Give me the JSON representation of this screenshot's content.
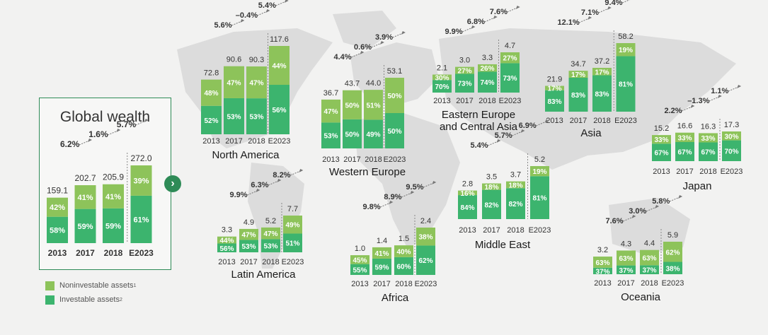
{
  "colors": {
    "noninvestable": "#8dc35a",
    "investable": "#3cb46e",
    "accent": "#2e8b57",
    "map": "#dcdcdc",
    "background": "#f2f2f1"
  },
  "legend": {
    "noninvestable_label": "Noninvestable assets",
    "noninvestable_note": "1",
    "investable_label": "Investable assets",
    "investable_note": "2"
  },
  "chart_data": [
    {
      "type": "bar",
      "stacked": true,
      "title": "Global wealth",
      "categories": [
        "2013",
        "2017",
        "2018",
        "E2023"
      ],
      "totals": [
        "159.1",
        "202.7",
        "205.9",
        "272.0"
      ],
      "series": [
        {
          "name": "Investable assets",
          "labels": [
            "58%",
            "59%",
            "59%",
            "61%"
          ]
        },
        {
          "name": "Noninvestable assets",
          "labels": [
            "42%",
            "41%",
            "41%",
            "39%"
          ]
        }
      ],
      "growth": [
        "6.2%",
        "1.6%",
        "5.7%"
      ]
    },
    {
      "type": "bar",
      "stacked": true,
      "title": "North America",
      "categories": [
        "2013",
        "2017",
        "2018",
        "E2023"
      ],
      "totals": [
        "72.8",
        "90.6",
        "90.3",
        "117.6"
      ],
      "series": [
        {
          "name": "Investable assets",
          "labels": [
            "52%",
            "53%",
            "53%",
            "56%"
          ]
        },
        {
          "name": "Noninvestable assets",
          "labels": [
            "48%",
            "47%",
            "47%",
            "44%"
          ]
        }
      ],
      "growth": [
        "5.6%",
        "–0.4%",
        "5.4%"
      ]
    },
    {
      "type": "bar",
      "stacked": true,
      "title": "Western Europe",
      "categories": [
        "2013",
        "2017",
        "2018",
        "E2023"
      ],
      "totals": [
        "36.7",
        "43.7",
        "44.0",
        "53.1"
      ],
      "series": [
        {
          "name": "Investable assets",
          "labels": [
            "53%",
            "50%",
            "49%",
            "50%"
          ]
        },
        {
          "name": "Noninvestable assets",
          "labels": [
            "47%",
            "50%",
            "51%",
            "50%"
          ]
        }
      ],
      "growth": [
        "4.4%",
        "0.6%",
        "3.9%"
      ]
    },
    {
      "type": "bar",
      "stacked": true,
      "title": "Eastern Europe and Central Asia",
      "title_lines": [
        "Eastern Europe",
        "and Central Asia"
      ],
      "categories": [
        "2013",
        "2017",
        "2018",
        "E2023"
      ],
      "totals": [
        "2.1",
        "3.0",
        "3.3",
        "4.7"
      ],
      "series": [
        {
          "name": "Investable assets",
          "labels": [
            "70%",
            "73%",
            "74%",
            "73%"
          ]
        },
        {
          "name": "Noninvestable assets",
          "labels": [
            "30%",
            "27%",
            "26%",
            "27%"
          ]
        }
      ],
      "growth": [
        "9.9%",
        "6.8%",
        "7.6%"
      ]
    },
    {
      "type": "bar",
      "stacked": true,
      "title": "Asia",
      "categories": [
        "2013",
        "2017",
        "2018",
        "E2023"
      ],
      "totals": [
        "21.9",
        "34.7",
        "37.2",
        "58.2"
      ],
      "series": [
        {
          "name": "Investable assets",
          "labels": [
            "83%",
            "83%",
            "83%",
            "81%"
          ]
        },
        {
          "name": "Noninvestable assets",
          "labels": [
            "17%",
            "17%",
            "17%",
            "19%"
          ]
        }
      ],
      "growth": [
        "12.1%",
        "7.1%",
        "9.4%"
      ]
    },
    {
      "type": "bar",
      "stacked": true,
      "title": "Japan",
      "categories": [
        "2013",
        "2017",
        "2018",
        "E2023"
      ],
      "totals": [
        "15.2",
        "16.6",
        "16.3",
        "17.3"
      ],
      "series": [
        {
          "name": "Investable assets",
          "labels": [
            "67%",
            "67%",
            "67%",
            "70%"
          ]
        },
        {
          "name": "Noninvestable assets",
          "labels": [
            "33%",
            "33%",
            "33%",
            "30%"
          ]
        }
      ],
      "growth": [
        "2.2%",
        "–1.3%",
        "1.1%"
      ]
    },
    {
      "type": "bar",
      "stacked": true,
      "title": "Latin America",
      "categories": [
        "2013",
        "2017",
        "2018",
        "E2023"
      ],
      "totals": [
        "3.3",
        "4.9",
        "5.2",
        "7.7"
      ],
      "series": [
        {
          "name": "Investable assets",
          "labels": [
            "56%",
            "53%",
            "53%",
            "51%"
          ]
        },
        {
          "name": "Noninvestable assets",
          "labels": [
            "44%",
            "47%",
            "47%",
            "49%"
          ]
        }
      ],
      "growth": [
        "9.9%",
        "6.3%",
        "8.2%"
      ]
    },
    {
      "type": "bar",
      "stacked": true,
      "title": "Africa",
      "categories": [
        "2013",
        "2017",
        "2018",
        "E2023"
      ],
      "totals": [
        "1.0",
        "1.4",
        "1.5",
        "2.4"
      ],
      "series": [
        {
          "name": "Investable assets",
          "labels": [
            "55%",
            "59%",
            "60%",
            "62%"
          ]
        },
        {
          "name": "Noninvestable assets",
          "labels": [
            "45%",
            "41%",
            "40%",
            "38%"
          ]
        }
      ],
      "growth": [
        "9.8%",
        "8.9%",
        "9.5%"
      ]
    },
    {
      "type": "bar",
      "stacked": true,
      "title": "Middle East",
      "categories": [
        "2013",
        "2017",
        "2018",
        "E2023"
      ],
      "totals": [
        "2.8",
        "3.5",
        "3.7",
        "5.2"
      ],
      "series": [
        {
          "name": "Investable assets",
          "labels": [
            "84%",
            "82%",
            "82%",
            "81%"
          ]
        },
        {
          "name": "Noninvestable assets",
          "labels": [
            "16%",
            "18%",
            "18%",
            "19%"
          ]
        }
      ],
      "growth": [
        "5.4%",
        "5.7%",
        "6.9%"
      ]
    },
    {
      "type": "bar",
      "stacked": true,
      "title": "Oceania",
      "categories": [
        "2013",
        "2017",
        "2018",
        "E2023"
      ],
      "totals": [
        "3.2",
        "4.3",
        "4.4",
        "5.9"
      ],
      "series": [
        {
          "name": "Investable assets",
          "labels": [
            "37%",
            "37%",
            "37%",
            "38%"
          ]
        },
        {
          "name": "Noninvestable assets",
          "labels": [
            "63%",
            "63%",
            "63%",
            "62%"
          ]
        }
      ],
      "growth": [
        "7.6%",
        "3.0%",
        "5.8%"
      ]
    }
  ]
}
